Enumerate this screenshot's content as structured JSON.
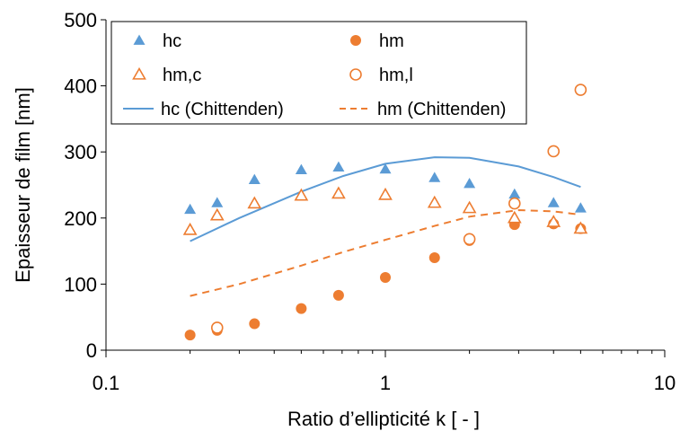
{
  "chart_data": {
    "type": "scatter",
    "xlabel": "Ratio d’ellipticité k [ - ]",
    "ylabel": "Epaisseur de film [nm]",
    "xscale": "log",
    "xlim": [
      0.1,
      10
    ],
    "ylim": [
      0,
      500
    ],
    "x_ticks": [
      {
        "value": 0.1,
        "label": "0.1"
      },
      {
        "value": 1,
        "label": "1"
      },
      {
        "value": 10,
        "label": "10"
      }
    ],
    "y_ticks": [
      {
        "value": 0,
        "label": "0"
      },
      {
        "value": 100,
        "label": "100"
      },
      {
        "value": 200,
        "label": "200"
      },
      {
        "value": 300,
        "label": "300"
      },
      {
        "value": 400,
        "label": "400"
      },
      {
        "value": 500,
        "label": "500"
      }
    ],
    "grid": false,
    "legend_position": "top",
    "series": [
      {
        "name": "hc",
        "kind": "marker",
        "marker": "triangle-filled",
        "color": "#5b9bd5",
        "x": [
          0.2,
          0.25,
          0.34,
          0.5,
          0.68,
          1.0,
          1.5,
          2.0,
          2.9,
          4.0,
          5.0
        ],
        "y": [
          213,
          223,
          258,
          273,
          277,
          274,
          261,
          252,
          236,
          223,
          215
        ]
      },
      {
        "name": "hm",
        "kind": "marker",
        "marker": "circle-filled",
        "color": "#ed7d31",
        "x": [
          0.2,
          0.25,
          0.34,
          0.5,
          0.68,
          1.0,
          1.5,
          2.0,
          2.9,
          4.0,
          5.0
        ],
        "y": [
          23,
          30,
          40,
          63,
          83,
          110,
          140,
          166,
          190,
          191,
          184
        ]
      },
      {
        "name": "hm,c",
        "kind": "marker",
        "marker": "triangle-open",
        "color": "#ed7d31",
        "x": [
          0.2,
          0.25,
          0.34,
          0.5,
          0.68,
          1.0,
          1.5,
          2.0,
          2.9,
          4.0,
          5.0
        ],
        "y": [
          182,
          204,
          222,
          234,
          237,
          235,
          223,
          215,
          200,
          194,
          184
        ]
      },
      {
        "name": "hm,l",
        "kind": "marker",
        "marker": "circle-open",
        "color": "#ed7d31",
        "x": [
          0.25,
          2.0,
          2.9,
          4.0,
          5.0
        ],
        "y": [
          34,
          168,
          222,
          301,
          394
        ]
      },
      {
        "name": "hc (Chittenden)",
        "kind": "line",
        "dash": "solid",
        "color": "#5b9bd5",
        "x": [
          0.2,
          0.3,
          0.5,
          0.7,
          1.0,
          1.5,
          2.0,
          3.0,
          4.0,
          5.0
        ],
        "y": [
          165,
          200,
          240,
          263,
          282,
          292,
          291,
          278,
          262,
          247
        ]
      },
      {
        "name": "hm (Chittenden)",
        "kind": "line",
        "dash": "dashed",
        "color": "#ed7d31",
        "x": [
          0.2,
          0.3,
          0.5,
          0.7,
          1.0,
          1.5,
          2.0,
          3.0,
          4.0,
          5.0
        ],
        "y": [
          82,
          100,
          128,
          148,
          167,
          188,
          202,
          212,
          210,
          205
        ]
      }
    ]
  }
}
